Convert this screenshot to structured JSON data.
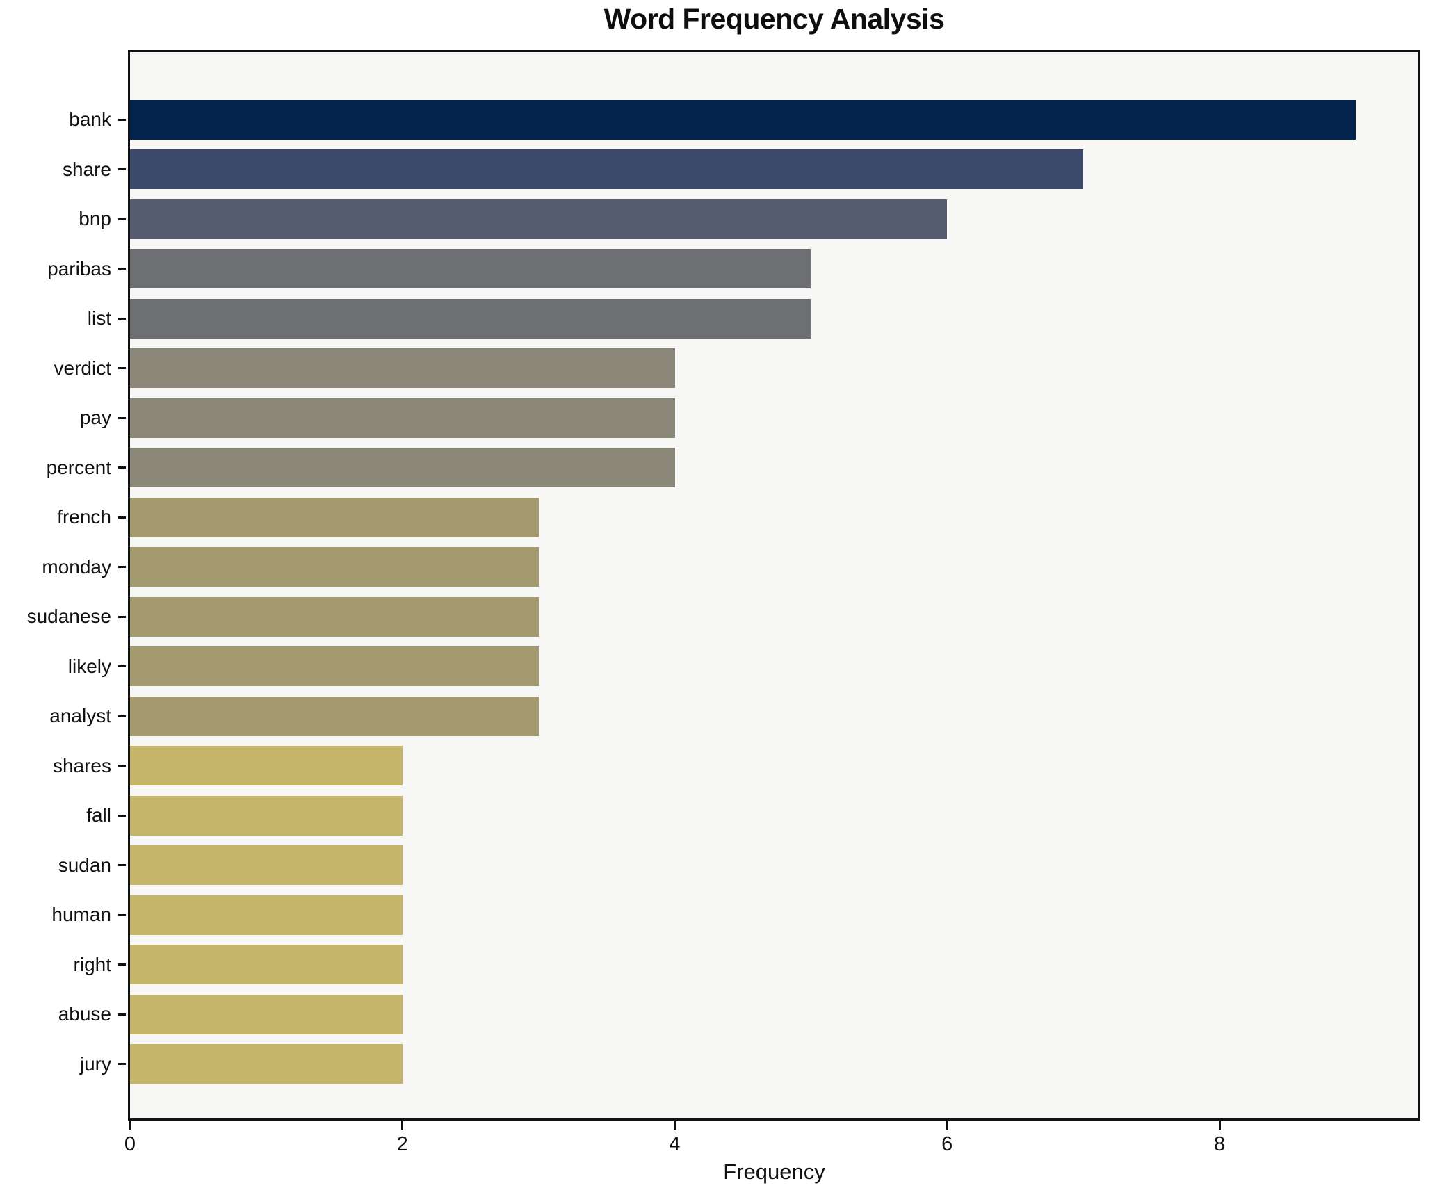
{
  "chart_data": {
    "type": "bar",
    "orientation": "horizontal",
    "title": "Word Frequency Analysis",
    "xlabel": "Frequency",
    "ylabel": "",
    "categories": [
      "bank",
      "share",
      "bnp",
      "paribas",
      "list",
      "verdict",
      "pay",
      "percent",
      "french",
      "monday",
      "sudanese",
      "likely",
      "analyst",
      "shares",
      "fall",
      "sudan",
      "human",
      "right",
      "abuse",
      "jury"
    ],
    "values": [
      9,
      7,
      6,
      5,
      5,
      4,
      4,
      4,
      3,
      3,
      3,
      3,
      3,
      2,
      2,
      2,
      2,
      2,
      2,
      2
    ],
    "bar_colors": [
      "#02234e",
      "#3b4a6b",
      "#565d6e",
      "#6e6f72",
      "#6e6f72",
      "#8a8778",
      "#8a8778",
      "#8a8778",
      "#a39a70",
      "#a39a70",
      "#a39a70",
      "#a39a70",
      "#a39a70",
      "#c5b568",
      "#c5b568",
      "#c5b568",
      "#c5b568",
      "#c5b568",
      "#c5b568",
      "#c5b568"
    ],
    "xlim": [
      0,
      9.46
    ],
    "xticks": [
      0,
      2,
      4,
      6,
      8
    ],
    "grid": false,
    "legend_position": "none",
    "plot_bg": "#f7f7f6",
    "fig_bg": "#ffffff",
    "spine_color": "#111111"
  }
}
